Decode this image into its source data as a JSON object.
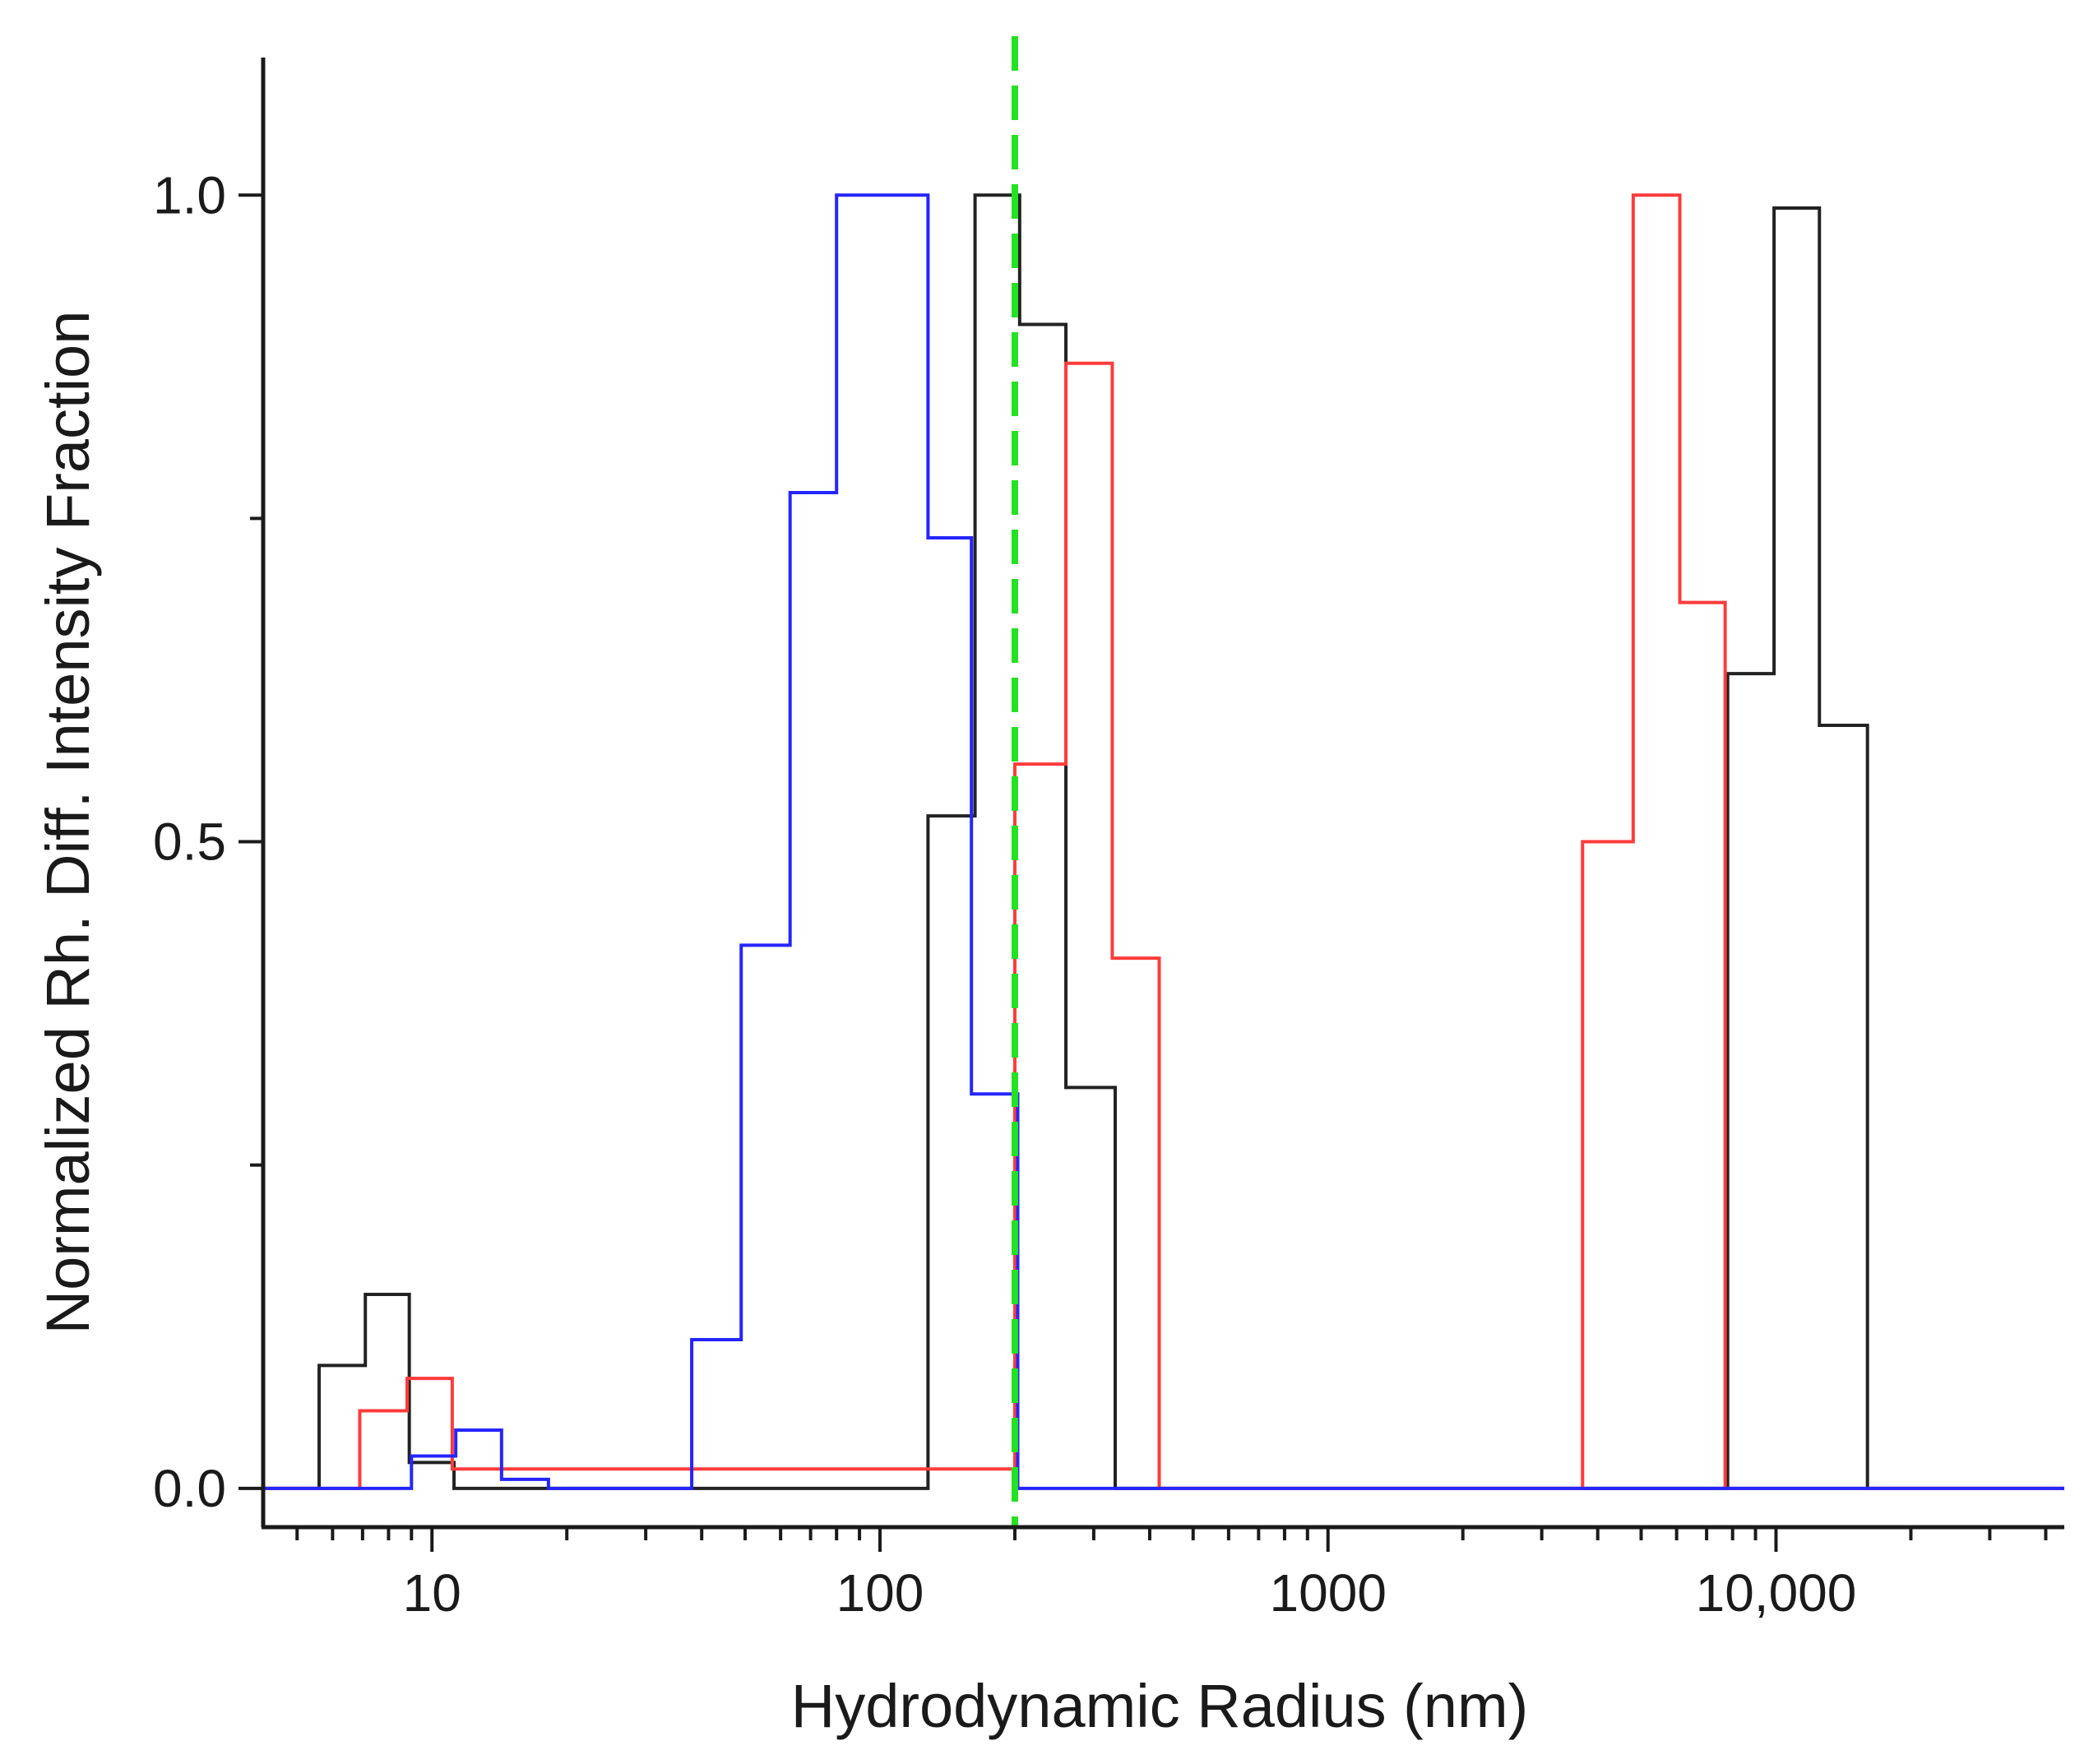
{
  "chart_data": {
    "type": "step",
    "xscale": "log",
    "xlabel": "Hydrodynamic Radius (nm)",
    "ylabel": "Normalized Rh. Diff. Intensity Fraction",
    "xlim": [
      4.2,
      44000
    ],
    "ylim": [
      -0.03,
      1.1
    ],
    "x_ticks": [
      {
        "value": 10,
        "label": "10"
      },
      {
        "value": 100,
        "label": "100"
      },
      {
        "value": 1000,
        "label": "1000"
      },
      {
        "value": 10000,
        "label": "10,000"
      }
    ],
    "y_ticks": [
      {
        "value": 0.0,
        "label": "0.0"
      },
      {
        "value": 0.5,
        "label": "0.5"
      },
      {
        "value": 1.0,
        "label": "1.0"
      }
    ],
    "reference_line": {
      "x": 200,
      "color": "#22e222",
      "style": "dashed"
    },
    "series": [
      {
        "name": "black",
        "color": "#222222",
        "edges": [
          5.6,
          7.1,
          8.9,
          11.2,
          128,
          163,
          205,
          260,
          335,
          7800,
          9900,
          12500,
          16000
        ],
        "values": [
          0.095,
          0.15,
          0.02,
          0,
          0.52,
          1.0,
          0.9,
          0.31,
          0,
          0.63,
          0.99,
          0.59
        ]
      },
      {
        "name": "red",
        "color": "#ff3b3b",
        "edges": [
          6.9,
          8.8,
          11.1,
          200,
          260,
          330,
          420,
          3700,
          4800,
          6100,
          7700
        ],
        "values": [
          0.06,
          0.085,
          0.015,
          0.56,
          0.87,
          0.41,
          0,
          0.5,
          1.0,
          0.685
        ]
      },
      {
        "name": "blue",
        "color": "#2525ff",
        "edges": [
          4.2,
          9.0,
          11.3,
          14.3,
          18.2,
          38,
          49,
          63,
          80,
          128,
          160,
          203,
          44000
        ],
        "values": [
          0,
          0.025,
          0.045,
          0.007,
          0,
          0.115,
          0.42,
          0.77,
          1.0,
          0.735,
          0.305,
          0
        ]
      }
    ]
  }
}
